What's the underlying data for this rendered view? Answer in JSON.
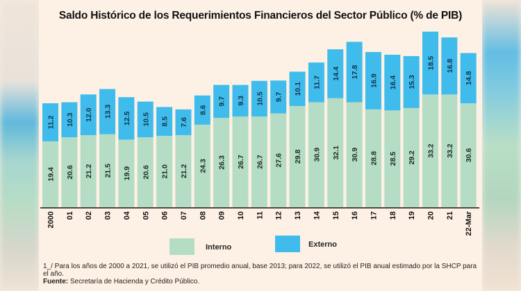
{
  "chart_data": {
    "type": "bar",
    "stacked": true,
    "title": "Saldo Histórico de los Requerimientos Financieros del Sector Público (% de PIB)",
    "xlabel": "",
    "ylabel": "",
    "categories": [
      "2000",
      "01",
      "02",
      "03",
      "04",
      "05",
      "06",
      "07",
      "08",
      "09",
      "10",
      "11",
      "12",
      "13",
      "14",
      "15",
      "16",
      "17",
      "18",
      "19",
      "20",
      "21",
      "22-Mar"
    ],
    "series": [
      {
        "name": "Interno",
        "color": "#b5dcc4",
        "values": [
          19.4,
          20.6,
          21.2,
          21.5,
          19.9,
          20.6,
          21.0,
          21.2,
          24.3,
          26.3,
          26.7,
          26.7,
          27.6,
          29.8,
          30.9,
          32.1,
          30.9,
          28.8,
          28.5,
          29.2,
          33.2,
          33.2,
          30.6
        ]
      },
      {
        "name": "Externo",
        "color": "#3fbcec",
        "values": [
          11.2,
          10.3,
          12.0,
          13.3,
          12.5,
          10.5,
          8.5,
          7.6,
          8.6,
          9.7,
          9.3,
          10.5,
          9.7,
          10.1,
          11.7,
          14.4,
          17.8,
          16.9,
          16.4,
          15.3,
          18.5,
          16.8,
          14.8
        ]
      }
    ],
    "ylim": [
      0,
      53
    ],
    "grid": false,
    "legend": "bottom-center",
    "labels_rotated": true
  },
  "legend": {
    "interno": "Interno",
    "externo": "Externo"
  },
  "notes": {
    "footnote": "1_/ Para los años de 2000 a 2021, se utilizó el PIB promedio anual, base 2013; para 2022, se utilizó el PIB anual estimado por la SHCP para el año.",
    "source_label": "Fuente:",
    "source_text": "Secretaría de Hacienda y Crédito Público."
  }
}
